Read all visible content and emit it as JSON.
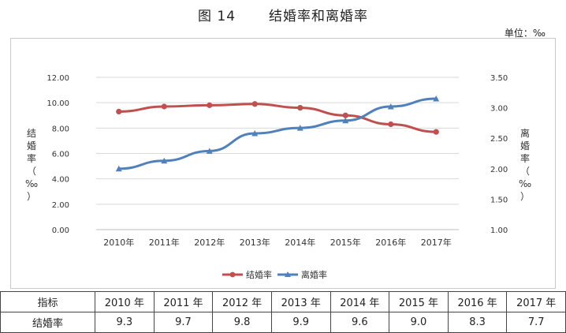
{
  "page": {
    "title_number": "图 14",
    "title_text": "结婚率和离婚率",
    "unit": "单位：‰"
  },
  "chart_data": {
    "type": "line",
    "categories": [
      "2010年",
      "2011年",
      "2012年",
      "2013年",
      "2014年",
      "2015年",
      "2016年",
      "2017年"
    ],
    "series": [
      {
        "name": "结婚率",
        "axis": "left",
        "color": "#c0504d",
        "values": [
          9.3,
          9.7,
          9.8,
          9.9,
          9.6,
          9.0,
          8.3,
          7.7
        ]
      },
      {
        "name": "离婚率",
        "axis": "right",
        "color": "#4f81bd",
        "values": [
          2.0,
          2.13,
          2.29,
          2.58,
          2.67,
          2.79,
          3.02,
          3.15
        ]
      }
    ],
    "y_left": {
      "label": "结婚率（‰）",
      "ylim": [
        0,
        12
      ],
      "ticks": [
        "0.00",
        "2.00",
        "4.00",
        "6.00",
        "8.00",
        "10.00",
        "12.00"
      ]
    },
    "y_right": {
      "label": "离婚率（‰）",
      "ylim": [
        1.0,
        3.5
      ],
      "ticks": [
        "1.00",
        "1.50",
        "2.00",
        "2.50",
        "3.00",
        "3.50"
      ]
    },
    "grid": true,
    "legend_position": "bottom"
  },
  "table": {
    "header_label": "指标",
    "years": [
      "2010 年",
      "2011 年",
      "2012 年",
      "2013 年",
      "2014 年",
      "2015 年",
      "2016 年",
      "2017 年"
    ],
    "rows": [
      {
        "label": "结婚率",
        "values": [
          "9.3",
          "9.7",
          "9.8",
          "9.9",
          "9.6",
          "9.0",
          "8.3",
          "7.7"
        ]
      }
    ]
  }
}
